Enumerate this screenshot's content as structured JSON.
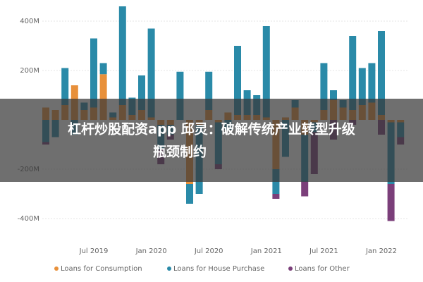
{
  "chart_data": {
    "type": "stacked_bar",
    "categories": [
      null,
      null,
      null,
      null,
      null,
      "Jul 2019",
      null,
      null,
      null,
      null,
      null,
      "Jan 2020",
      null,
      null,
      null,
      null,
      null,
      "Jul 2020",
      null,
      null,
      null,
      null,
      null,
      "Jan 2021",
      null,
      null,
      null,
      null,
      null,
      "Jul 2021",
      null,
      null,
      null,
      null,
      null,
      "Jan 2022",
      null,
      null
    ],
    "series": [
      {
        "name": "Loans for Consumption",
        "color": "#e8903a",
        "values": [
          50,
          40,
          60,
          140,
          40,
          50,
          185,
          10,
          60,
          20,
          40,
          10,
          -20,
          -20,
          0,
          -260,
          -20,
          40,
          -10,
          30,
          20,
          20,
          20,
          10,
          -200,
          10,
          50,
          -60,
          -10,
          40,
          80,
          50,
          40,
          60,
          70,
          20,
          -10,
          -10
        ]
      },
      {
        "name": "Loans for House Purchase",
        "color": "#2a8aa8",
        "values": [
          -90,
          -70,
          150,
          -60,
          30,
          280,
          45,
          20,
          400,
          70,
          140,
          360,
          -100,
          -40,
          195,
          -80,
          -280,
          155,
          -170,
          -40,
          280,
          100,
          80,
          370,
          -100,
          -150,
          30,
          -190,
          -40,
          190,
          40,
          30,
          300,
          150,
          160,
          340,
          -250,
          -60
        ]
      },
      {
        "name": "Loans for Other",
        "color": "#7b3f7a",
        "values": [
          -10,
          0,
          0,
          0,
          0,
          0,
          0,
          0,
          0,
          0,
          0,
          0,
          -60,
          -20,
          0,
          0,
          0,
          0,
          -20,
          0,
          0,
          0,
          0,
          0,
          -20,
          0,
          0,
          -60,
          -170,
          0,
          -80,
          0,
          -20,
          0,
          0,
          -60,
          -150,
          -30
        ]
      }
    ],
    "ylim": [
      -480,
      480
    ],
    "yticks": [
      {
        "value": -400,
        "label": "-400M"
      },
      {
        "value": -200,
        "label": "-200M"
      },
      {
        "value": 200,
        "label": "200M"
      },
      {
        "value": 400,
        "label": "400M"
      }
    ],
    "grid": true,
    "legend": "bottom"
  },
  "overlay": {
    "lines": [
      "杠杆炒股配资app 邱灵：破解传统产业转型升级",
      "瓶颈制约"
    ]
  }
}
